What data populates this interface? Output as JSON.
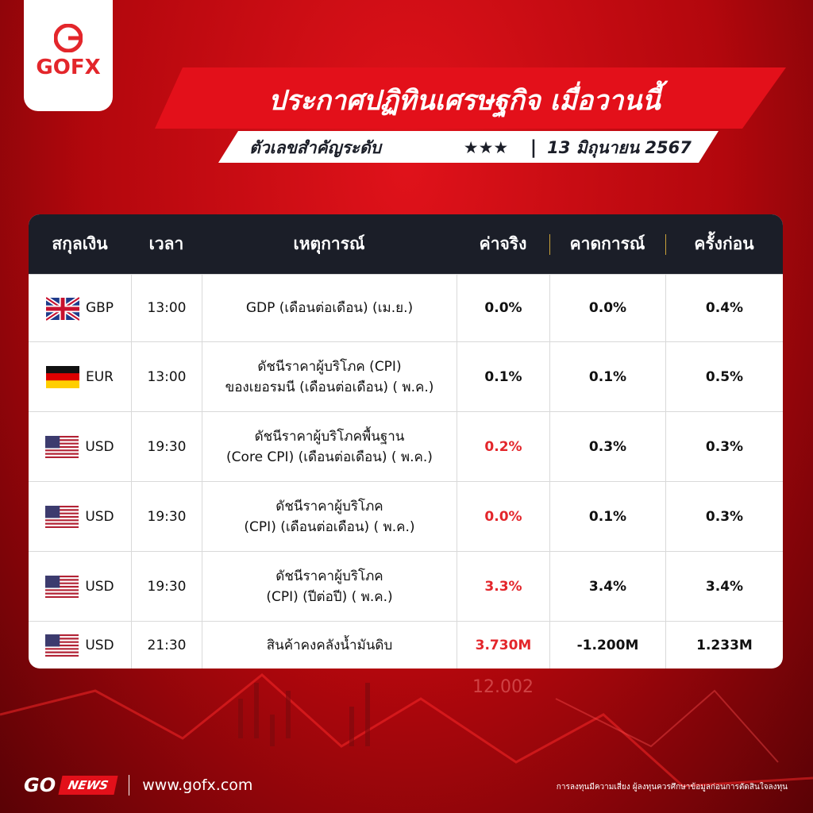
{
  "logo": {
    "text": "GOFX"
  },
  "header": {
    "title": "ประกาศปฏิทินเศรษฐกิจ เมื่อวานนี้",
    "subtitle": "ตัวเลขสำคัญระดับ",
    "stars": "★★★",
    "separator": "|",
    "date": "13 มิถุนายน 2567"
  },
  "table": {
    "columns": [
      "สกุลเงิน",
      "เวลา",
      "เหตุการณ์",
      "ค่าจริง",
      "คาดการณ์",
      "ครั้งก่อน"
    ],
    "rows": [
      {
        "currency": "GBP",
        "time": "13:00",
        "event": [
          "GDP (เดือนต่อเดือน) (เม.ย.)"
        ],
        "actual": "0.0%",
        "actual_color": "#111111",
        "forecast": "0.0%",
        "previous": "0.4%"
      },
      {
        "currency": "EUR",
        "time": "13:00",
        "event": [
          "ดัชนีราคาผู้บริโภค (CPI)",
          "ของเยอรมนี (เดือนต่อเดือน) ( พ.ค.)"
        ],
        "actual": "0.1%",
        "actual_color": "#111111",
        "forecast": "0.1%",
        "previous": "0.5%"
      },
      {
        "currency": "USD",
        "time": "19:30",
        "event": [
          "ดัชนีราคาผู้บริโภคพื้นฐาน",
          "(Core CPI) (เดือนต่อเดือน) ( พ.ค.)"
        ],
        "actual": "0.2%",
        "actual_color": "#e3262b",
        "forecast": "0.3%",
        "previous": "0.3%"
      },
      {
        "currency": "USD",
        "time": "19:30",
        "event": [
          "ดัชนีราคาผู้บริโภค",
          "(CPI) (เดือนต่อเดือน) ( พ.ค.)"
        ],
        "actual": "0.0%",
        "actual_color": "#e3262b",
        "forecast": "0.1%",
        "previous": "0.3%"
      },
      {
        "currency": "USD",
        "time": "19:30",
        "event": [
          "ดัชนีราคาผู้บริโภค",
          "(CPI) (ปีต่อปี) ( พ.ค.)"
        ],
        "actual": "3.3%",
        "actual_color": "#e3262b",
        "forecast": "3.4%",
        "previous": "3.4%"
      },
      {
        "currency": "USD",
        "time": "21:30",
        "event": [
          "สินค้าคงคลังน้ำมันดิบ"
        ],
        "actual": "3.730M",
        "actual_color": "#e3262b",
        "forecast": "-1.200M",
        "previous": "1.233M"
      }
    ]
  },
  "background_text": "12.002",
  "footer": {
    "brand": "GO",
    "tag": "NEWS",
    "url": "www.gofx.com",
    "disclaimer": "การลงทุนมีความเสี่ยง ผู้ลงทุนควรศึกษาข้อมูลก่อนการตัดสินใจลงทุน"
  }
}
